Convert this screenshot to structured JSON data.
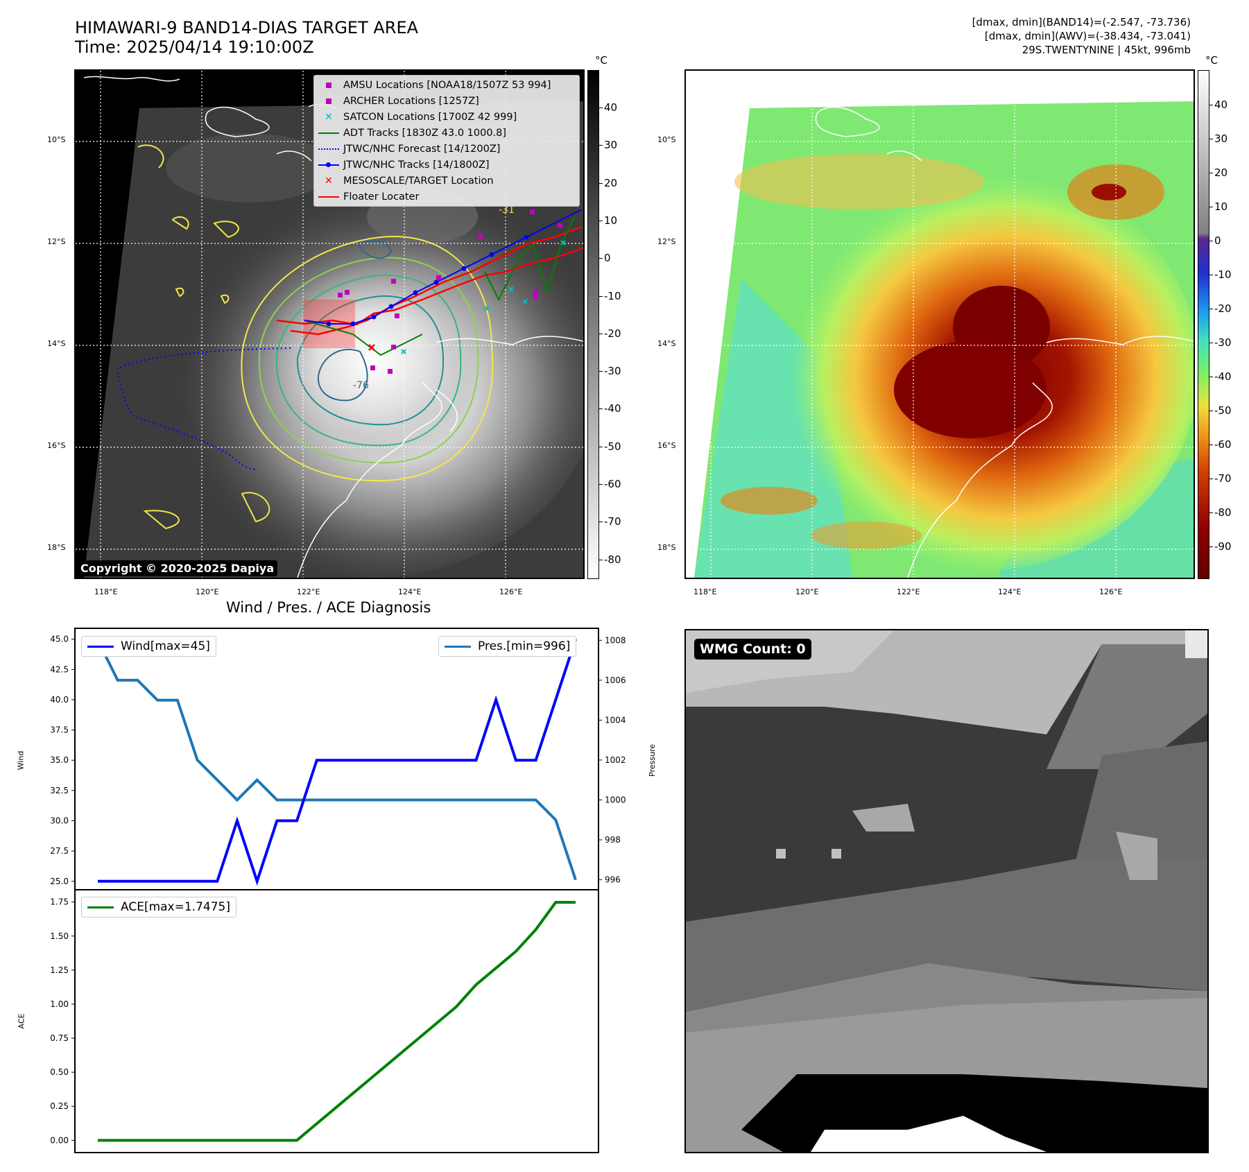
{
  "header": {
    "title_line1": "HIMAWARI-9 BAND14-DIAS TARGET AREA",
    "title_line2": "Time: 2025/04/14 19:10:00Z",
    "stats_line1": "[dmax, dmin](BAND14)=(-2.547, -73.736)",
    "stats_line2": "[dmax, dmin](AWV)=(-38.434, -73.041)",
    "stats_line3": "29S.TWENTYNINE | 45kt, 996mb"
  },
  "map": {
    "lon_labels": [
      "118°E",
      "120°E",
      "122°E",
      "124°E",
      "126°E"
    ],
    "lat_labels": [
      "10°S",
      "12°S",
      "14°S",
      "16°S",
      "18°S"
    ],
    "contour_labels": [
      "-31",
      "-76"
    ],
    "copyright": "Copyright © 2020-2025 Dapiya",
    "legend": [
      {
        "label": "AMSU Locations [NOAA18/1507Z 53 994]",
        "marker": "square",
        "color": "#c000c0"
      },
      {
        "label": "ARCHER Locations [1257Z]",
        "marker": "square",
        "color": "#c000c0"
      },
      {
        "label": "SATCON Locations [1700Z 42 999]",
        "marker": "x",
        "color": "#00bcbc"
      },
      {
        "label": "ADT Tracks [1830Z 43.0 1000.8]",
        "marker": "line",
        "color": "#008000"
      },
      {
        "label": "JTWC/NHC Forecast [14/1200Z]",
        "marker": "dotted",
        "color": "#0000ff"
      },
      {
        "label": "JTWC/NHC Tracks [14/1800Z]",
        "marker": "line-dot",
        "color": "#0000ff"
      },
      {
        "label": "MESOSCALE/TARGET Location",
        "marker": "x",
        "color": "#ff0000"
      },
      {
        "label": "Floater Locater",
        "marker": "line",
        "color": "#ff0000"
      }
    ],
    "colors": {
      "track_red": "#ff0000",
      "track_blue": "#0000ff",
      "track_green": "#008000",
      "forecast": "#0000ff",
      "coast": "#ffffff"
    }
  },
  "colorbar_gray": {
    "unit": "°C",
    "ticks": [
      "40",
      "30",
      "20",
      "10",
      "0",
      "-10",
      "-20",
      "-30",
      "-40",
      "-50",
      "-60",
      "-70",
      "-80"
    ]
  },
  "colorbar_color": {
    "unit": "°C",
    "ticks": [
      "40",
      "30",
      "20",
      "10",
      "0",
      "-10",
      "-20",
      "-30",
      "-40",
      "-50",
      "-60",
      "-70",
      "-80",
      "-90"
    ]
  },
  "diag_title": "Wind / Pres. / ACE Diagnosis",
  "chart_data": [
    {
      "type": "line",
      "title": "Wind / Pres. / ACE Diagnosis",
      "ylabel": "Wind",
      "y2label": "Pressure",
      "x": [
        0,
        1,
        2,
        3,
        4,
        5,
        6,
        7,
        8,
        9,
        10,
        11,
        12,
        13,
        14,
        15,
        16,
        17,
        18,
        19,
        20,
        21,
        22,
        23,
        24
      ],
      "ylim": [
        24.3,
        45.9
      ],
      "y2lim": [
        995.5,
        1008.6
      ],
      "yticks": [
        "45.0",
        "42.5",
        "40.0",
        "37.5",
        "35.0",
        "32.5",
        "30.0",
        "27.5",
        "25.0"
      ],
      "y2ticks": [
        "1008",
        "1006",
        "1004",
        "1002",
        "1000",
        "998",
        "996"
      ],
      "series": [
        {
          "name": "Wind[max=45]",
          "axis": "left",
          "color": "#0000ff",
          "values": [
            25,
            25,
            25,
            25,
            25,
            25,
            25,
            30,
            25,
            30,
            30,
            35,
            35,
            35,
            35,
            35,
            35,
            35,
            35,
            35,
            40,
            35,
            35,
            40,
            45
          ]
        },
        {
          "name": "Pres.[min=996]",
          "axis": "right",
          "color": "#1f77b4",
          "values": [
            1008,
            1006,
            1006,
            1005,
            1005,
            1002,
            1001,
            1000,
            1001,
            1000,
            1000,
            1000,
            1000,
            1000,
            1000,
            1000,
            1000,
            1000,
            1000,
            1000,
            1000,
            1000,
            1000,
            999,
            996
          ]
        }
      ]
    },
    {
      "type": "line",
      "ylabel": "ACE",
      "x": [
        0,
        1,
        2,
        3,
        4,
        5,
        6,
        7,
        8,
        9,
        10,
        11,
        12,
        13,
        14,
        15,
        16,
        17,
        18,
        19,
        20,
        21,
        22,
        23,
        24
      ],
      "ylim": [
        -0.09,
        1.84
      ],
      "yticks": [
        "1.75",
        "1.50",
        "1.25",
        "1.00",
        "0.75",
        "0.50",
        "0.25",
        "0.00"
      ],
      "series": [
        {
          "name": "ACE[max=1.7475]",
          "color": "#008000",
          "values": [
            0,
            0,
            0,
            0,
            0,
            0,
            0,
            0,
            0,
            0,
            0,
            0.1225,
            0.245,
            0.3675,
            0.49,
            0.6125,
            0.735,
            0.8575,
            0.98,
            1.1425,
            1.265,
            1.3875,
            1.5475,
            1.7475,
            1.7475
          ]
        }
      ]
    }
  ],
  "wmg": {
    "label": "WMG Count: 0"
  }
}
